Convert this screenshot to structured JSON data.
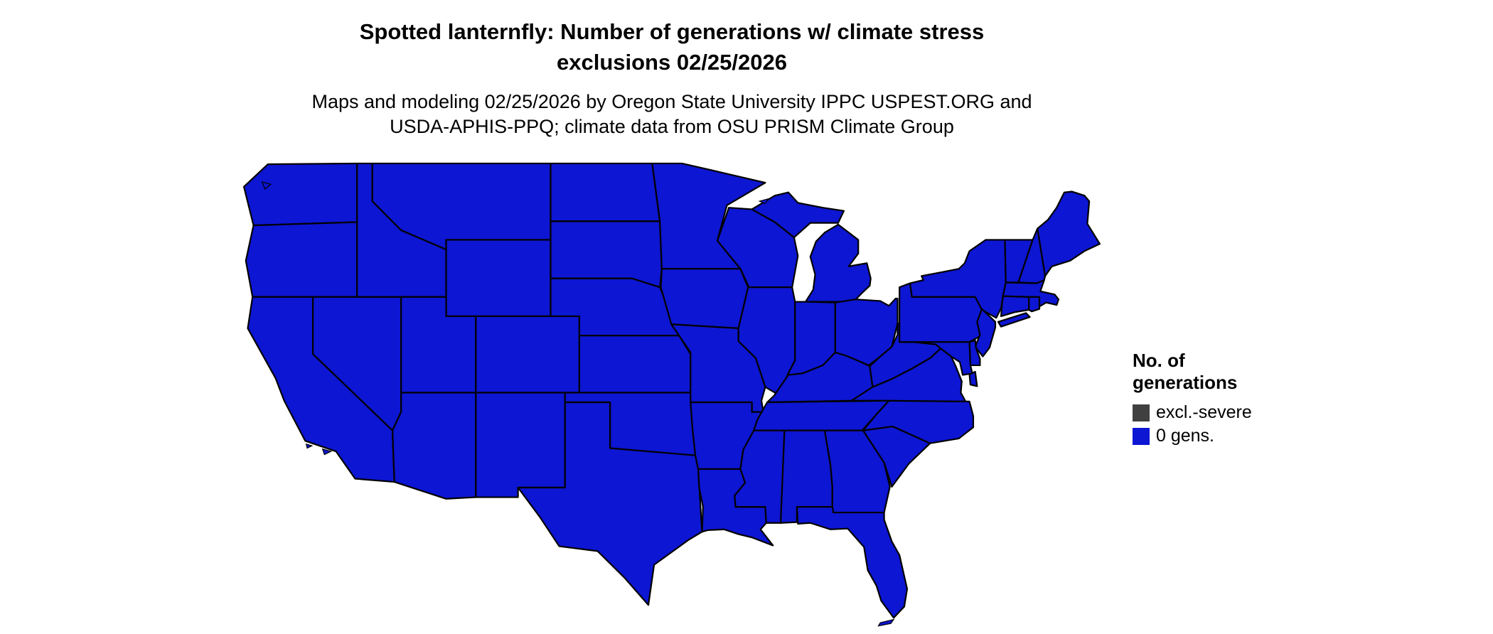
{
  "page": {
    "background": "#ffffff"
  },
  "header": {
    "title_line1": "Spotted lanternfly: Number of generations w/ climate stress",
    "title_line2": "exclusions 02/25/2026",
    "subtitle_line1": "Maps and modeling 02/25/2026 by Oregon State University IPPC USPEST.ORG and",
    "subtitle_line2": "USDA-APHIS-PPQ; climate data from OSU PRISM Climate Group"
  },
  "legend": {
    "title_line1": "No. of",
    "title_line2": "generations",
    "items": [
      {
        "label": "excl.-severe",
        "color": "#404040"
      },
      {
        "label": "0 gens.",
        "color": "#0D16D2"
      }
    ]
  },
  "map": {
    "type": "choropleth",
    "border_color": "#000000",
    "state_fill_value": "0 gens.",
    "state_fill_color": "#0D16D2",
    "states": [
      {
        "id": "WA",
        "name": "Washington",
        "value": "0 gens."
      },
      {
        "id": "OR",
        "name": "Oregon",
        "value": "0 gens."
      },
      {
        "id": "CA",
        "name": "California",
        "value": "0 gens."
      },
      {
        "id": "NV",
        "name": "Nevada",
        "value": "0 gens."
      },
      {
        "id": "ID",
        "name": "Idaho",
        "value": "0 gens."
      },
      {
        "id": "MT",
        "name": "Montana",
        "value": "0 gens."
      },
      {
        "id": "WY",
        "name": "Wyoming",
        "value": "0 gens."
      },
      {
        "id": "UT",
        "name": "Utah",
        "value": "0 gens."
      },
      {
        "id": "CO",
        "name": "Colorado",
        "value": "0 gens."
      },
      {
        "id": "AZ",
        "name": "Arizona",
        "value": "0 gens."
      },
      {
        "id": "NM",
        "name": "New Mexico",
        "value": "0 gens."
      },
      {
        "id": "ND",
        "name": "North Dakota",
        "value": "0 gens."
      },
      {
        "id": "SD",
        "name": "South Dakota",
        "value": "0 gens."
      },
      {
        "id": "NE",
        "name": "Nebraska",
        "value": "0 gens."
      },
      {
        "id": "KS",
        "name": "Kansas",
        "value": "0 gens."
      },
      {
        "id": "OK",
        "name": "Oklahoma",
        "value": "0 gens."
      },
      {
        "id": "TX",
        "name": "Texas",
        "value": "0 gens."
      },
      {
        "id": "MN",
        "name": "Minnesota",
        "value": "0 gens."
      },
      {
        "id": "IA",
        "name": "Iowa",
        "value": "0 gens."
      },
      {
        "id": "MO",
        "name": "Missouri",
        "value": "0 gens."
      },
      {
        "id": "AR",
        "name": "Arkansas",
        "value": "0 gens."
      },
      {
        "id": "LA",
        "name": "Louisiana",
        "value": "0 gens."
      },
      {
        "id": "WI",
        "name": "Wisconsin",
        "value": "0 gens."
      },
      {
        "id": "IL",
        "name": "Illinois",
        "value": "0 gens."
      },
      {
        "id": "MI",
        "name": "Michigan",
        "value": "0 gens."
      },
      {
        "id": "IN",
        "name": "Indiana",
        "value": "0 gens."
      },
      {
        "id": "OH",
        "name": "Ohio",
        "value": "0 gens."
      },
      {
        "id": "KY",
        "name": "Kentucky",
        "value": "0 gens."
      },
      {
        "id": "TN",
        "name": "Tennessee",
        "value": "0 gens."
      },
      {
        "id": "MS",
        "name": "Mississippi",
        "value": "0 gens."
      },
      {
        "id": "AL",
        "name": "Alabama",
        "value": "0 gens."
      },
      {
        "id": "GA",
        "name": "Georgia",
        "value": "0 gens."
      },
      {
        "id": "FL",
        "name": "Florida",
        "value": "0 gens."
      },
      {
        "id": "SC",
        "name": "South Carolina",
        "value": "0 gens."
      },
      {
        "id": "NC",
        "name": "North Carolina",
        "value": "0 gens."
      },
      {
        "id": "VA",
        "name": "Virginia",
        "value": "0 gens."
      },
      {
        "id": "WV",
        "name": "West Virginia",
        "value": "0 gens."
      },
      {
        "id": "PA",
        "name": "Pennsylvania",
        "value": "0 gens."
      },
      {
        "id": "NY",
        "name": "New York",
        "value": "0 gens."
      },
      {
        "id": "NJ",
        "name": "New Jersey",
        "value": "0 gens."
      },
      {
        "id": "DE",
        "name": "Delaware",
        "value": "0 gens."
      },
      {
        "id": "MD",
        "name": "Maryland",
        "value": "0 gens."
      },
      {
        "id": "CT",
        "name": "Connecticut",
        "value": "0 gens."
      },
      {
        "id": "RI",
        "name": "Rhode Island",
        "value": "0 gens."
      },
      {
        "id": "MA",
        "name": "Massachusetts",
        "value": "0 gens."
      },
      {
        "id": "VT",
        "name": "Vermont",
        "value": "0 gens."
      },
      {
        "id": "NH",
        "name": "New Hampshire",
        "value": "0 gens."
      },
      {
        "id": "ME",
        "name": "Maine",
        "value": "0 gens."
      }
    ]
  }
}
